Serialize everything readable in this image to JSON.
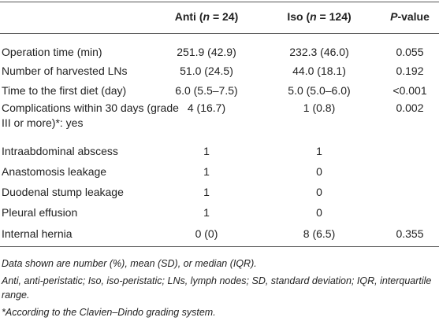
{
  "table": {
    "columns": [
      {
        "parts": [
          "Anti (",
          "n",
          " = 24)"
        ]
      },
      {
        "parts": [
          "Iso (",
          "n",
          " = 124)"
        ]
      },
      {
        "parts": [
          "P",
          "-value"
        ]
      }
    ],
    "rows": [
      [
        "Operation time (min)",
        "251.9 (42.9)",
        "232.3 (46.0)",
        "0.055"
      ],
      [
        "Number of harvested LNs",
        "51.0 (24.5)",
        "44.0 (18.1)",
        "0.192"
      ],
      [
        "Time to the first diet (day)",
        "6.0 (5.5–7.5)",
        "5.0 (5.0–6.0)",
        "<0.001"
      ],
      [
        "Complications within 30 days (grade III or more)*: yes",
        "4 (16.7)",
        "1 (0.8)",
        "0.002"
      ],
      [
        "Intraabdominal abscess",
        "1",
        "1",
        null
      ],
      [
        "Anastomosis leakage",
        "1",
        "0",
        null
      ],
      [
        "Duodenal stump leakage",
        "1",
        "0",
        null
      ],
      [
        "Pleural effusion",
        "1",
        "0",
        null
      ],
      [
        "Internal hernia",
        "0 (0)",
        "8 (6.5)",
        "0.355"
      ]
    ],
    "footnotes": [
      "Data shown are number (%), mean (SD), or median (IQR).",
      "Anti, anti-peristatic; Iso, iso-peristatic; LNs, lymph nodes; SD, standard deviation; IQR, interquartile range.",
      "*According to the Clavien–Dindo grading system."
    ]
  }
}
